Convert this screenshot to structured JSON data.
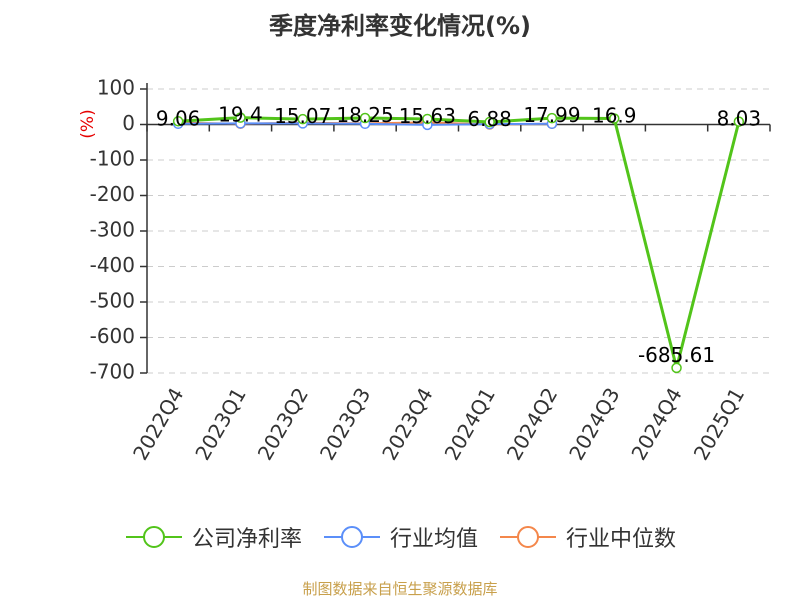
{
  "chart_data": {
    "type": "line",
    "title": "季度净利率变化情况(%)",
    "unit_label": "(%)",
    "categories": [
      "2022Q4",
      "2023Q1",
      "2023Q2",
      "2023Q3",
      "2023Q4",
      "2024Q1",
      "2024Q2",
      "2024Q3",
      "2024Q4",
      "2025Q1"
    ],
    "y_ticks": [
      100,
      0,
      -100,
      -200,
      -300,
      -400,
      -500,
      -600,
      -700
    ],
    "ylim": [
      -700,
      100
    ],
    "grid": true,
    "legend_position": "bottom",
    "series": [
      {
        "name": "公司净利率",
        "color": "#52c41a",
        "values": [
          9.06,
          19.4,
          15.07,
          18.25,
          15.63,
          6.88,
          17.99,
          16.9,
          -685.61,
          8.03
        ],
        "labels": [
          "9.06",
          "19.4",
          "15.07",
          "18.25",
          "15.63",
          "6.88",
          "17.99",
          "16.9",
          "-685.61",
          "8.03"
        ]
      },
      {
        "name": "行业均值",
        "color": "#5b8ff9",
        "values": [
          2,
          3,
          3,
          2,
          -1,
          1,
          2,
          null,
          null,
          null
        ]
      },
      {
        "name": "行业中位数",
        "color": "#f4874b",
        "values": [
          5,
          2,
          5,
          3,
          6,
          0,
          2,
          null,
          null,
          null
        ]
      }
    ]
  },
  "source_text": "制图数据来自恒生聚源数据库"
}
